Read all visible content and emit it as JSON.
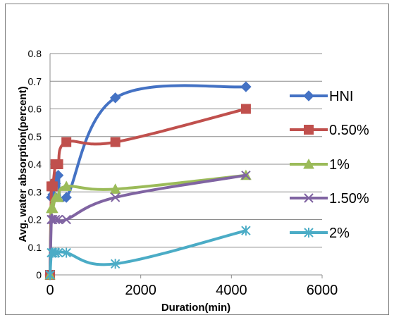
{
  "chart_data": {
    "type": "line",
    "title": "",
    "xlabel": "Duration(min)",
    "ylabel": "Avg. water absorption(percent)",
    "xlim": [
      0,
      6000
    ],
    "ylim": [
      0,
      0.8
    ],
    "x_ticks": [
      "0",
      "2000",
      "4000",
      "6000"
    ],
    "y_ticks": [
      "0",
      "0.1",
      "0.2",
      "0.3",
      "0.4",
      "0.5",
      "0.6",
      "0.7",
      "0.8"
    ],
    "grid": true,
    "legend_position": "right",
    "series": [
      {
        "name": "HNI",
        "color": "#4472C4",
        "marker": "diamond",
        "x": [
          0,
          30,
          60,
          120,
          180,
          360,
          1440,
          4320
        ],
        "y": [
          0,
          0.28,
          0.29,
          0.33,
          0.36,
          0.28,
          0.64,
          0.68
        ]
      },
      {
        "name": "0.50%",
        "color": "#C0504D",
        "marker": "square",
        "x": [
          0,
          30,
          60,
          120,
          180,
          360,
          1440,
          4320
        ],
        "y": [
          0,
          0.32,
          0.32,
          0.4,
          0.4,
          0.48,
          0.48,
          0.6
        ]
      },
      {
        "name": "1%",
        "color": "#9BBB59",
        "marker": "triangle",
        "x": [
          0,
          30,
          60,
          120,
          180,
          360,
          1440,
          4320
        ],
        "y": [
          0,
          0.24,
          0.24,
          0.28,
          0.28,
          0.32,
          0.31,
          0.36
        ]
      },
      {
        "name": "1.50%",
        "color": "#8064A2",
        "marker": "x",
        "x": [
          0,
          30,
          60,
          120,
          180,
          360,
          1440,
          4320
        ],
        "y": [
          0,
          0.2,
          0.2,
          0.2,
          0.2,
          0.2,
          0.28,
          0.36
        ]
      },
      {
        "name": "2%",
        "color": "#4BACC6",
        "marker": "star",
        "x": [
          0,
          30,
          60,
          120,
          180,
          360,
          1440,
          4320
        ],
        "y": [
          0,
          0.08,
          0.08,
          0.08,
          0.08,
          0.08,
          0.04,
          0.16
        ]
      }
    ]
  }
}
